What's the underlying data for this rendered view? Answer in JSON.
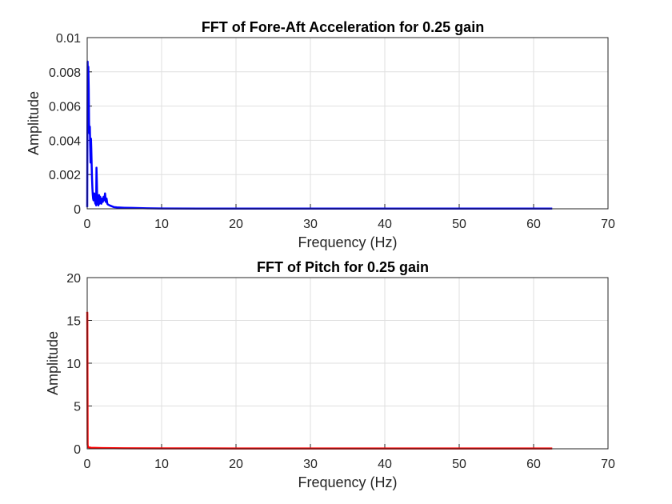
{
  "chart_data": [
    {
      "type": "line",
      "title": "FFT of Fore-Aft Acceleration for 0.25 gain",
      "xlabel": "Frequency (Hz)",
      "ylabel": "Amplitude",
      "xlim": [
        0,
        70
      ],
      "ylim": [
        0,
        0.01
      ],
      "xticks": [
        "0",
        "10",
        "20",
        "30",
        "40",
        "50",
        "60",
        "70"
      ],
      "yticks": [
        "0",
        "0.002",
        "0.004",
        "0.006",
        "0.008",
        "0.01"
      ],
      "grid": true,
      "color": "#0000ff",
      "series": [
        {
          "x": [
            0,
            0.05,
            0.1,
            0.15,
            0.2,
            0.25,
            0.3,
            0.35,
            0.4,
            0.45,
            0.5,
            0.55,
            0.6,
            0.65,
            0.7,
            0.75,
            0.8,
            0.85,
            0.9,
            0.95,
            1.0,
            1.05,
            1.1,
            1.15,
            1.2,
            1.25,
            1.3,
            1.35,
            1.4,
            1.45,
            1.5,
            1.55,
            1.6,
            1.65,
            1.7,
            1.75,
            1.8,
            1.9,
            2.0,
            2.1,
            2.2,
            2.3,
            2.4,
            2.5,
            2.6,
            2.7,
            2.8,
            3.0,
            3.3,
            3.6,
            4.0,
            5.0,
            6.0,
            7.0,
            8.0,
            10.0,
            15.0,
            20.0,
            30.0,
            40.0,
            50.0,
            60.0,
            62.5
          ],
          "y": [
            0.0001,
            0.0086,
            0.0075,
            0.0083,
            0.007,
            0.005,
            0.0044,
            0.0048,
            0.0038,
            0.0027,
            0.0041,
            0.0035,
            0.0025,
            0.0018,
            0.0012,
            0.0008,
            0.0006,
            0.0005,
            0.0007,
            0.0009,
            0.0006,
            0.0004,
            0.0003,
            0.0005,
            0.0002,
            0.0024,
            0.0015,
            0.0003,
            0.0008,
            0.0004,
            0.0002,
            0.0005,
            0.0008,
            0.0003,
            0.0006,
            0.0007,
            0.0004,
            0.0003,
            0.0006,
            0.0004,
            0.0007,
            0.0005,
            0.0009,
            0.0004,
            0.0006,
            0.0003,
            0.00025,
            0.0002,
            0.00015,
            0.0001,
            8e-05,
            6e-05,
            5e-05,
            4e-05,
            3e-05,
            2e-05,
            1.5e-05,
            1e-05,
            1e-05,
            1e-05,
            1e-05,
            1e-05,
            1e-05
          ]
        }
      ]
    },
    {
      "type": "line",
      "title": "FFT of Pitch for 0.25 gain",
      "xlabel": "Frequency (Hz)",
      "ylabel": "Amplitude",
      "xlim": [
        0,
        70
      ],
      "ylim": [
        0,
        20
      ],
      "xticks": [
        "0",
        "10",
        "20",
        "30",
        "40",
        "50",
        "60",
        "70"
      ],
      "yticks": [
        "0",
        "5",
        "10",
        "15",
        "20"
      ],
      "grid": true,
      "color": "#ff0000",
      "series": [
        {
          "x": [
            0,
            0.01,
            0.05,
            0.1,
            0.3,
            0.5,
            1.0,
            2.0,
            5.0,
            10.0,
            20.0,
            30.0,
            40.0,
            50.0,
            60.0,
            62.5
          ],
          "y": [
            16,
            15.8,
            0.5,
            0.2,
            0.15,
            0.12,
            0.1,
            0.08,
            0.06,
            0.05,
            0.04,
            0.04,
            0.04,
            0.04,
            0.04,
            0.04
          ]
        }
      ]
    }
  ]
}
